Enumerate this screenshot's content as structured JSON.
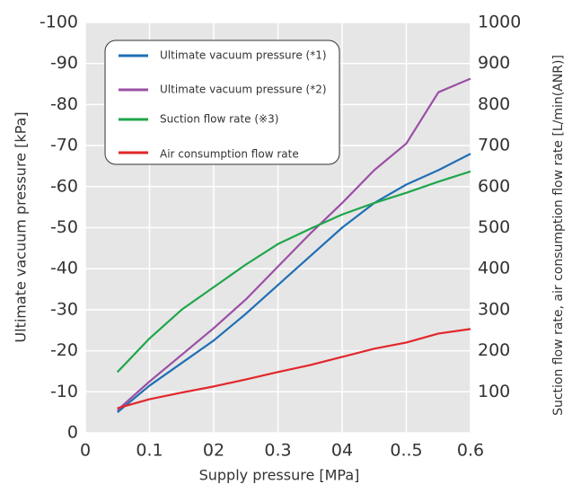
{
  "chart_data": {
    "type": "line",
    "x_label": "Supply pressure [MPa]",
    "y_label": "Ultimate vacuum pressure [kPa]",
    "y2_label": "Suction flow rate, air consumption flow rate [L/min(ANR)]",
    "x": [
      0.05,
      0.1,
      0.15,
      0.2,
      0.25,
      0.3,
      0.35,
      0.4,
      0.45,
      0.5,
      0.55,
      0.6
    ],
    "xlim": [
      0,
      0.6
    ],
    "xticks": [
      0,
      0.1,
      {
        "value": 0.2,
        "label": "02"
      },
      0.3,
      {
        "value": 0.4,
        "label": "04"
      },
      {
        "value": 0.5,
        "label": "0..5"
      },
      0.6
    ],
    "ylim": [
      0,
      -100
    ],
    "yticks": [
      0,
      -10,
      -20,
      -30,
      -40,
      -50,
      -60,
      -70,
      -80,
      -90,
      -100
    ],
    "y2lim": [
      0,
      1000
    ],
    "y2ticks": [
      100,
      200,
      300,
      400,
      500,
      600,
      700,
      800,
      900,
      1000
    ],
    "grid": true,
    "legend": "upper-left",
    "series": [
      {
        "name": "Ultimate vacuum pressure (*1)",
        "color": "#1f6fb5",
        "values": [
          -5,
          -11.5,
          -17,
          -22.5,
          -29,
          -36,
          -43,
          -50,
          -56,
          -60.5,
          -64,
          -68
        ]
      },
      {
        "name": "Ultimate vacuum pressure (*2)",
        "color": "#9b4fa5",
        "values": [
          -5.5,
          -12.5,
          -19,
          -25.5,
          -32.5,
          -40.5,
          -48.5,
          -56,
          -64,
          -70.5,
          -83,
          -86.3
        ]
      },
      {
        "name": "Suction flow rate (※3)",
        "color": "#1fa64a",
        "axis": "y2",
        "values": [
          148,
          230,
          300,
          355,
          410,
          460,
          497,
          532,
          560,
          585,
          612,
          637
        ]
      },
      {
        "name": "Air consumption flow rate",
        "color": "#e2262b",
        "axis": "y2",
        "values": [
          60,
          82,
          98,
          113,
          130,
          148,
          165,
          185,
          205,
          220,
          242,
          253
        ]
      }
    ]
  }
}
